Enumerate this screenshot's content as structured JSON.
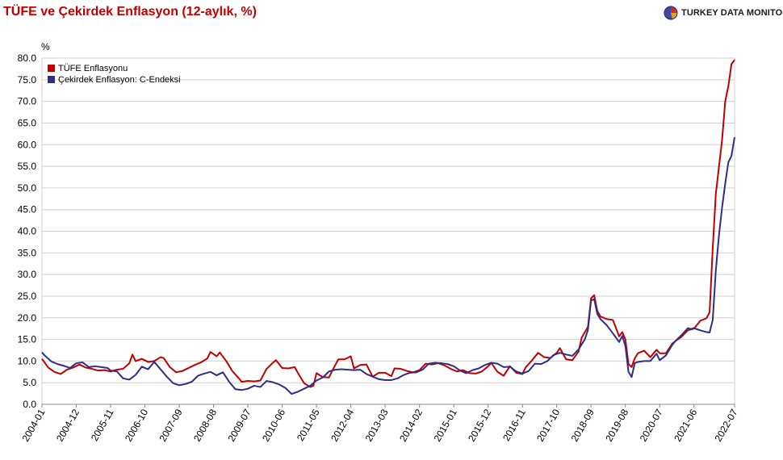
{
  "header": {
    "title": "TÜFE ve Çekirdek Enflasyon (12-aylık, %)",
    "brand": "TURKEY DATA MONITOR"
  },
  "chart_data": {
    "type": "line",
    "title": "TÜFE ve Çekirdek Enflasyon (12-aylık, %)",
    "ylabel": "%",
    "ylim": [
      0,
      80
    ],
    "y_ticks": [
      "0.0",
      "5.0",
      "10.0",
      "15.0",
      "20.0",
      "25.0",
      "30.0",
      "35.0",
      "40.0",
      "45.0",
      "50.0",
      "55.0",
      "60.0",
      "65.0",
      "70.0",
      "75.0",
      "80.0"
    ],
    "x_ticks": [
      "2004-01",
      "2004-12",
      "2005-11",
      "2006-10",
      "2007-09",
      "2008-08",
      "2009-07",
      "2010-06",
      "2011-05",
      "2012-04",
      "2013-03",
      "2014-02",
      "2015-01",
      "2015-12",
      "2016-11",
      "2017-10",
      "2018-09",
      "2019-08",
      "2020-07",
      "2021-06",
      "2022-07"
    ],
    "x_start": "2004-01",
    "grid": true,
    "legend_position": "top-left",
    "series": [
      {
        "name": "TÜFE Enflasyonu",
        "color": "#c00000",
        "anchors": [
          [
            "2004-01",
            10.5
          ],
          [
            "2004-03",
            8.5
          ],
          [
            "2004-05",
            7.5
          ],
          [
            "2004-07",
            7.0
          ],
          [
            "2004-09",
            8.0
          ],
          [
            "2004-11",
            8.5
          ],
          [
            "2005-01",
            9.2
          ],
          [
            "2005-03",
            8.5
          ],
          [
            "2005-05",
            8.2
          ],
          [
            "2005-07",
            7.8
          ],
          [
            "2005-09",
            7.9
          ],
          [
            "2005-11",
            7.6
          ],
          [
            "2006-01",
            8.0
          ],
          [
            "2006-03",
            8.2
          ],
          [
            "2006-05",
            9.5
          ],
          [
            "2006-06",
            11.5
          ],
          [
            "2006-07",
            10.0
          ],
          [
            "2006-09",
            10.5
          ],
          [
            "2006-11",
            9.8
          ],
          [
            "2007-01",
            10.0
          ],
          [
            "2007-03",
            10.9
          ],
          [
            "2007-04",
            10.7
          ],
          [
            "2007-06",
            8.6
          ],
          [
            "2007-08",
            7.4
          ],
          [
            "2007-10",
            7.7
          ],
          [
            "2007-12",
            8.4
          ],
          [
            "2008-02",
            9.1
          ],
          [
            "2008-04",
            9.7
          ],
          [
            "2008-06",
            10.6
          ],
          [
            "2008-07",
            12.1
          ],
          [
            "2008-09",
            11.1
          ],
          [
            "2008-10",
            11.99
          ],
          [
            "2008-12",
            10.06
          ],
          [
            "2009-02",
            7.7
          ],
          [
            "2009-04",
            6.1
          ],
          [
            "2009-05",
            5.2
          ],
          [
            "2009-07",
            5.4
          ],
          [
            "2009-09",
            5.3
          ],
          [
            "2009-11",
            5.5
          ],
          [
            "2010-01",
            8.2
          ],
          [
            "2010-03",
            9.6
          ],
          [
            "2010-04",
            10.2
          ],
          [
            "2010-06",
            8.4
          ],
          [
            "2010-08",
            8.3
          ],
          [
            "2010-10",
            8.6
          ],
          [
            "2010-11",
            7.3
          ],
          [
            "2011-01",
            4.9
          ],
          [
            "2011-03",
            4.0
          ],
          [
            "2011-04",
            4.3
          ],
          [
            "2011-05",
            7.2
          ],
          [
            "2011-07",
            6.3
          ],
          [
            "2011-09",
            6.2
          ],
          [
            "2011-10",
            7.7
          ],
          [
            "2011-12",
            10.4
          ],
          [
            "2012-02",
            10.4
          ],
          [
            "2012-04",
            11.1
          ],
          [
            "2012-05",
            8.3
          ],
          [
            "2012-07",
            9.1
          ],
          [
            "2012-09",
            9.2
          ],
          [
            "2012-11",
            6.4
          ],
          [
            "2013-01",
            7.3
          ],
          [
            "2013-03",
            7.3
          ],
          [
            "2013-05",
            6.5
          ],
          [
            "2013-06",
            8.3
          ],
          [
            "2013-08",
            8.2
          ],
          [
            "2013-10",
            7.7
          ],
          [
            "2013-12",
            7.4
          ],
          [
            "2014-02",
            7.9
          ],
          [
            "2014-04",
            9.4
          ],
          [
            "2014-06",
            9.2
          ],
          [
            "2014-08",
            9.5
          ],
          [
            "2014-10",
            9.0
          ],
          [
            "2014-12",
            8.2
          ],
          [
            "2015-02",
            7.6
          ],
          [
            "2015-04",
            7.9
          ],
          [
            "2015-06",
            7.2
          ],
          [
            "2015-08",
            7.1
          ],
          [
            "2015-10",
            7.6
          ],
          [
            "2015-12",
            8.8
          ],
          [
            "2016-01",
            9.6
          ],
          [
            "2016-03",
            7.5
          ],
          [
            "2016-05",
            6.6
          ],
          [
            "2016-07",
            8.8
          ],
          [
            "2016-09",
            7.3
          ],
          [
            "2016-11",
            7.0
          ],
          [
            "2016-12",
            8.5
          ],
          [
            "2017-02",
            10.1
          ],
          [
            "2017-04",
            11.9
          ],
          [
            "2017-06",
            10.9
          ],
          [
            "2017-08",
            10.7
          ],
          [
            "2017-10",
            11.9
          ],
          [
            "2017-11",
            13.0
          ],
          [
            "2018-01",
            10.4
          ],
          [
            "2018-03",
            10.2
          ],
          [
            "2018-05",
            12.2
          ],
          [
            "2018-06",
            15.4
          ],
          [
            "2018-08",
            17.9
          ],
          [
            "2018-09",
            24.5
          ],
          [
            "2018-10",
            25.2
          ],
          [
            "2018-11",
            21.6
          ],
          [
            "2018-12",
            20.3
          ],
          [
            "2019-02",
            19.7
          ],
          [
            "2019-04",
            19.5
          ],
          [
            "2019-06",
            15.7
          ],
          [
            "2019-07",
            16.7
          ],
          [
            "2019-08",
            15.0
          ],
          [
            "2019-09",
            9.3
          ],
          [
            "2019-10",
            8.6
          ],
          [
            "2019-11",
            10.6
          ],
          [
            "2019-12",
            11.8
          ],
          [
            "2020-02",
            12.4
          ],
          [
            "2020-04",
            10.9
          ],
          [
            "2020-06",
            12.6
          ],
          [
            "2020-07",
            11.8
          ],
          [
            "2020-09",
            11.8
          ],
          [
            "2020-11",
            14.0
          ],
          [
            "2020-12",
            14.6
          ],
          [
            "2021-02",
            15.6
          ],
          [
            "2021-04",
            17.1
          ],
          [
            "2021-06",
            17.5
          ],
          [
            "2021-08",
            19.3
          ],
          [
            "2021-10",
            19.9
          ],
          [
            "2021-11",
            21.3
          ],
          [
            "2021-12",
            36.1
          ],
          [
            "2022-01",
            48.7
          ],
          [
            "2022-03",
            61.1
          ],
          [
            "2022-04",
            70.0
          ],
          [
            "2022-05",
            73.5
          ],
          [
            "2022-06",
            78.6
          ],
          [
            "2022-07",
            79.6
          ]
        ]
      },
      {
        "name": "Çekirdek Enflasyon: C-Endeksi",
        "color": "#2e2e8a",
        "anchors": [
          [
            "2004-01",
            12.0
          ],
          [
            "2004-02",
            11.2
          ],
          [
            "2004-04",
            9.9
          ],
          [
            "2004-06",
            9.3
          ],
          [
            "2004-08",
            8.9
          ],
          [
            "2004-10",
            8.4
          ],
          [
            "2004-12",
            9.5
          ],
          [
            "2005-02",
            9.7
          ],
          [
            "2005-04",
            8.6
          ],
          [
            "2005-06",
            8.8
          ],
          [
            "2005-08",
            8.6
          ],
          [
            "2005-10",
            8.4
          ],
          [
            "2005-11",
            7.8
          ],
          [
            "2006-01",
            7.6
          ],
          [
            "2006-03",
            6.0
          ],
          [
            "2006-05",
            5.7
          ],
          [
            "2006-07",
            6.8
          ],
          [
            "2006-09",
            8.7
          ],
          [
            "2006-11",
            8.1
          ],
          [
            "2007-01",
            9.8
          ],
          [
            "2007-03",
            8.1
          ],
          [
            "2007-05",
            6.4
          ],
          [
            "2007-07",
            4.9
          ],
          [
            "2007-09",
            4.4
          ],
          [
            "2007-11",
            4.7
          ],
          [
            "2008-01",
            5.2
          ],
          [
            "2008-03",
            6.6
          ],
          [
            "2008-05",
            7.1
          ],
          [
            "2008-07",
            7.5
          ],
          [
            "2008-09",
            6.7
          ],
          [
            "2008-11",
            7.4
          ],
          [
            "2009-01",
            5.2
          ],
          [
            "2009-03",
            3.5
          ],
          [
            "2009-05",
            3.3
          ],
          [
            "2009-07",
            3.6
          ],
          [
            "2009-09",
            4.3
          ],
          [
            "2009-11",
            4.0
          ],
          [
            "2010-01",
            5.4
          ],
          [
            "2010-03",
            5.1
          ],
          [
            "2010-05",
            4.6
          ],
          [
            "2010-07",
            3.8
          ],
          [
            "2010-09",
            2.4
          ],
          [
            "2010-11",
            2.9
          ],
          [
            "2011-01",
            3.6
          ],
          [
            "2011-03",
            4.3
          ],
          [
            "2011-05",
            5.5
          ],
          [
            "2011-07",
            6.2
          ],
          [
            "2011-09",
            7.6
          ],
          [
            "2011-11",
            8.0
          ],
          [
            "2012-01",
            8.1
          ],
          [
            "2012-03",
            8.0
          ],
          [
            "2012-05",
            7.9
          ],
          [
            "2012-07",
            8.0
          ],
          [
            "2012-09",
            7.0
          ],
          [
            "2012-11",
            6.4
          ],
          [
            "2013-01",
            5.8
          ],
          [
            "2013-03",
            5.6
          ],
          [
            "2013-05",
            5.6
          ],
          [
            "2013-07",
            6.0
          ],
          [
            "2013-09",
            6.8
          ],
          [
            "2013-11",
            7.3
          ],
          [
            "2014-01",
            7.4
          ],
          [
            "2014-03",
            8.0
          ],
          [
            "2014-05",
            9.4
          ],
          [
            "2014-07",
            9.6
          ],
          [
            "2014-09",
            9.5
          ],
          [
            "2014-11",
            9.3
          ],
          [
            "2015-01",
            8.8
          ],
          [
            "2015-03",
            7.8
          ],
          [
            "2015-05",
            7.2
          ],
          [
            "2015-07",
            7.9
          ],
          [
            "2015-09",
            8.3
          ],
          [
            "2015-11",
            9.1
          ],
          [
            "2016-01",
            9.6
          ],
          [
            "2016-03",
            9.4
          ],
          [
            "2016-05",
            8.6
          ],
          [
            "2016-07",
            8.7
          ],
          [
            "2016-09",
            7.6
          ],
          [
            "2016-11",
            7.1
          ],
          [
            "2017-01",
            7.7
          ],
          [
            "2017-03",
            9.4
          ],
          [
            "2017-05",
            9.3
          ],
          [
            "2017-07",
            10.0
          ],
          [
            "2017-09",
            11.4
          ],
          [
            "2017-11",
            11.9
          ],
          [
            "2018-01",
            11.5
          ],
          [
            "2018-03",
            11.2
          ],
          [
            "2018-05",
            12.7
          ],
          [
            "2018-07",
            15.0
          ],
          [
            "2018-08",
            17.2
          ],
          [
            "2018-09",
            24.0
          ],
          [
            "2018-10",
            24.3
          ],
          [
            "2018-11",
            20.9
          ],
          [
            "2018-12",
            19.7
          ],
          [
            "2019-02",
            18.3
          ],
          [
            "2019-04",
            16.4
          ],
          [
            "2019-06",
            14.4
          ],
          [
            "2019-07",
            15.8
          ],
          [
            "2019-08",
            13.5
          ],
          [
            "2019-09",
            7.5
          ],
          [
            "2019-10",
            6.3
          ],
          [
            "2019-11",
            9.5
          ],
          [
            "2019-12",
            9.8
          ],
          [
            "2020-02",
            10.0
          ],
          [
            "2020-04",
            10.0
          ],
          [
            "2020-06",
            11.7
          ],
          [
            "2020-07",
            10.2
          ],
          [
            "2020-09",
            11.3
          ],
          [
            "2020-11",
            13.7
          ],
          [
            "2020-12",
            14.6
          ],
          [
            "2021-02",
            16.0
          ],
          [
            "2021-04",
            17.6
          ],
          [
            "2021-05",
            17.4
          ],
          [
            "2021-06",
            17.6
          ],
          [
            "2021-08",
            17.1
          ],
          [
            "2021-10",
            16.7
          ],
          [
            "2021-11",
            16.6
          ],
          [
            "2021-12",
            19.5
          ],
          [
            "2022-01",
            31.0
          ],
          [
            "2022-02",
            39.1
          ],
          [
            "2022-03",
            45.5
          ],
          [
            "2022-04",
            51.0
          ],
          [
            "2022-05",
            55.9
          ],
          [
            "2022-06",
            57.4
          ],
          [
            "2022-07",
            61.7
          ]
        ]
      }
    ]
  }
}
